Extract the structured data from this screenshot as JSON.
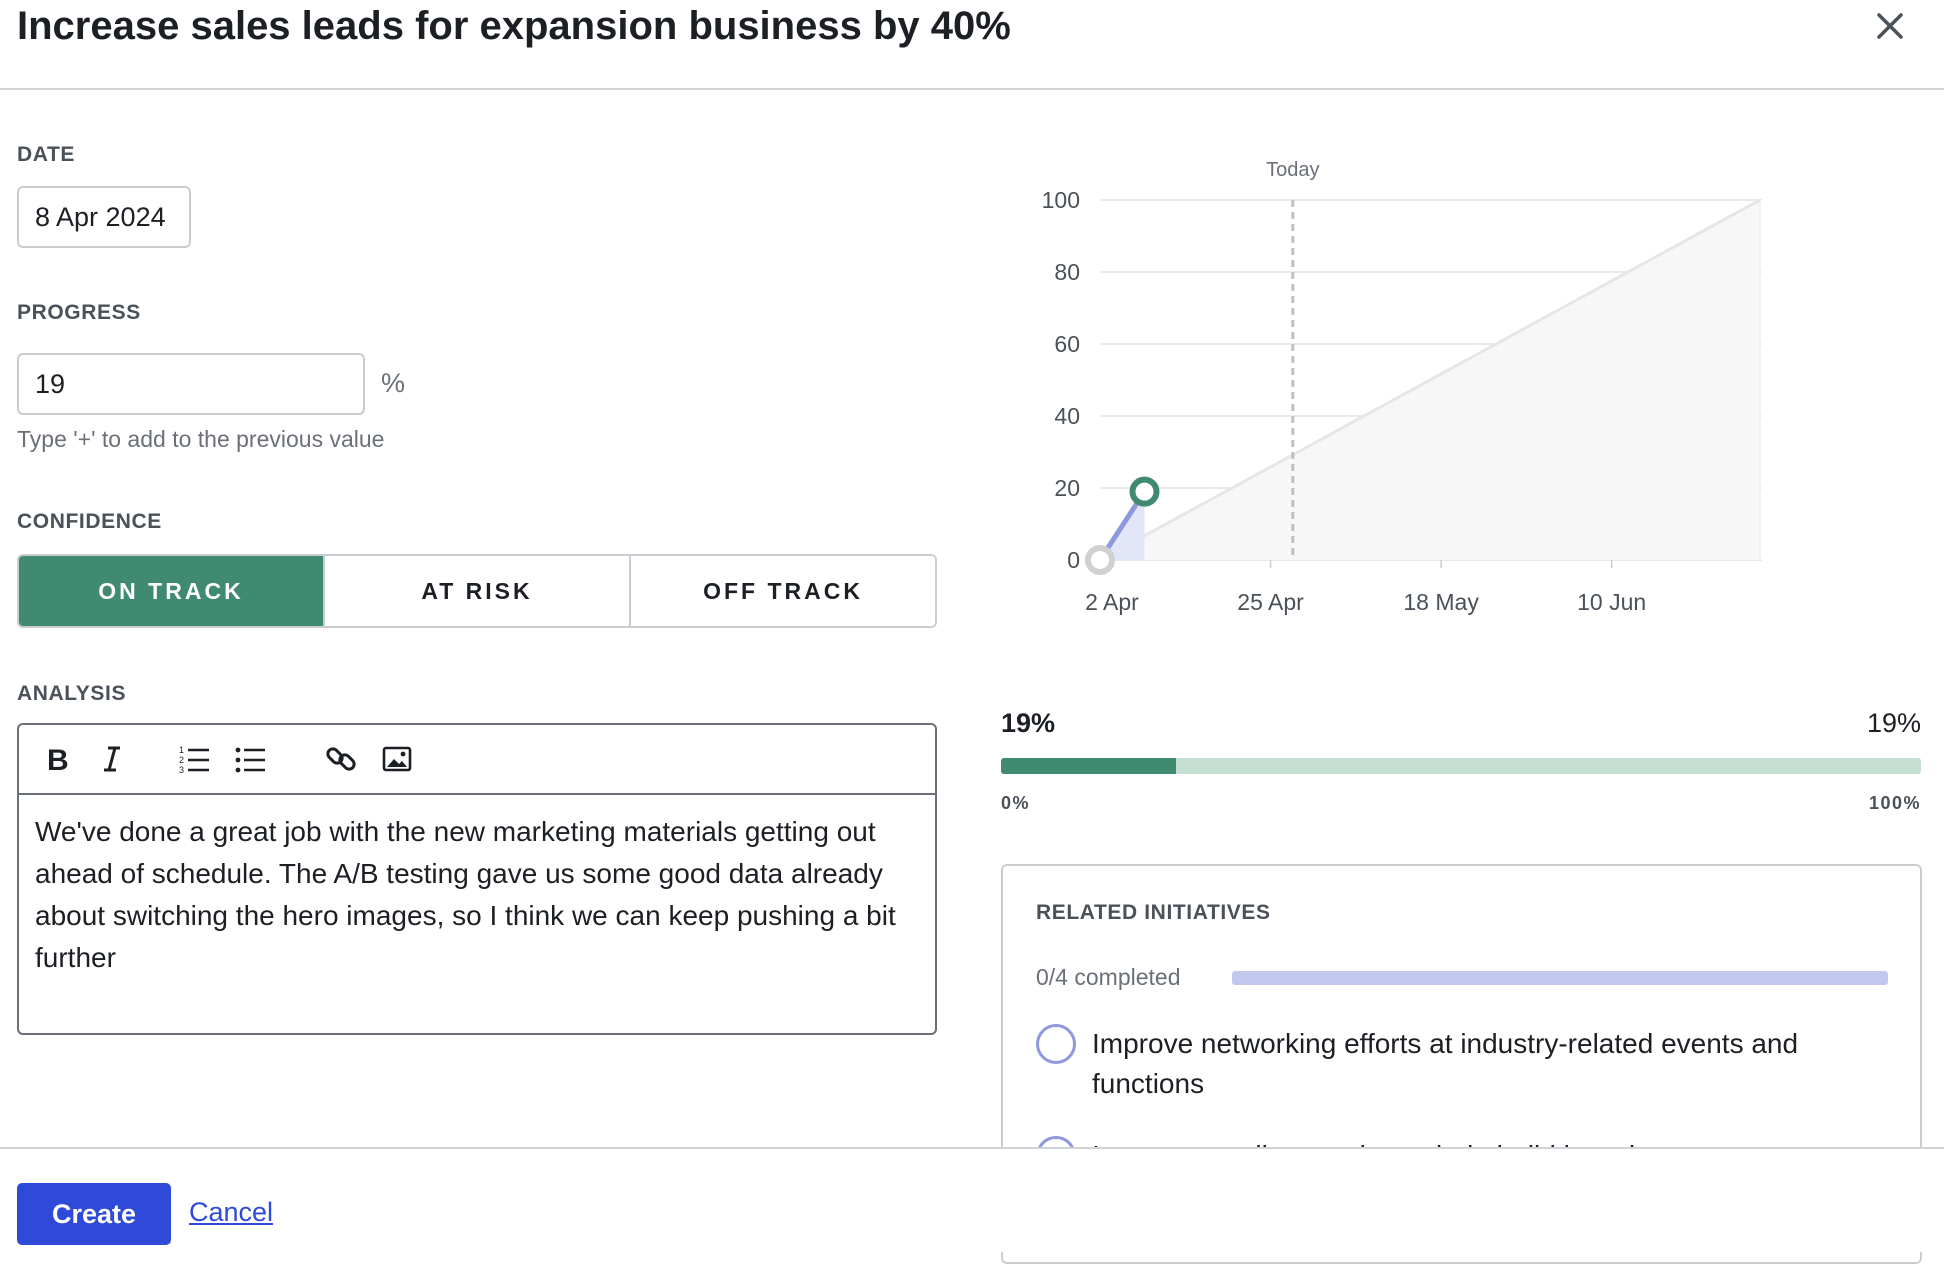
{
  "header": {
    "title": "Increase sales leads for expansion business by 40%"
  },
  "form": {
    "date_label": "DATE",
    "date_value": "8 Apr 2024",
    "progress_label": "PROGRESS",
    "progress_value": "19",
    "progress_suffix": "%",
    "progress_hint": "Type '+' to add to the previous value",
    "confidence_label": "CONFIDENCE",
    "confidence_options": [
      "ON TRACK",
      "AT RISK",
      "OFF TRACK"
    ],
    "confidence_selected": "ON TRACK",
    "analysis_label": "ANALYSIS",
    "analysis_text": "We've done a great job with the new marketing materials getting out ahead of schedule. The A/B testing gave us some good data already about switching the hero images, so I think we can keep pushing a bit further",
    "toolbar_icons": [
      "bold-icon",
      "italic-icon",
      "numbered-list-icon",
      "bulleted-list-icon",
      "link-icon",
      "image-icon"
    ]
  },
  "chart_data": {
    "type": "line",
    "title": "",
    "xlabel": "",
    "ylabel": "",
    "ylim": [
      0,
      100
    ],
    "yticks": [
      "0",
      "20",
      "40",
      "60",
      "80",
      "100"
    ],
    "xticks": [
      "2 Apr",
      "25 Apr",
      "18 May",
      "10 Jun"
    ],
    "today_label": "Today",
    "today_date": "2024-04-28",
    "series": [
      {
        "x": [
          "2024-04-02",
          "2024-04-08"
        ],
        "values": [
          0,
          19
        ]
      }
    ],
    "target_line": {
      "x": [
        "2024-04-02",
        "2024-06-30"
      ],
      "values": [
        0,
        100
      ]
    },
    "grid": true,
    "colors": {
      "progress": "#8e98dc",
      "current_point": "#3f8a70",
      "start_point": "#d0d0d0",
      "target": "#e6e6e6",
      "area": "#f7f7f7"
    }
  },
  "progress_bar": {
    "current_label": "19%",
    "right_label": "19%",
    "value": 0.19,
    "min_label": "0%",
    "max_label": "100%",
    "color": "#3f8a70",
    "track_color": "#c5dfd3"
  },
  "related": {
    "title": "RELATED INITIATIVES",
    "completed_text": "0/4 completed",
    "completed_fraction": 0,
    "items": [
      {
        "text": "Improve networking efforts at industry-related events and functions"
      },
      {
        "text": "Improve email campaign to help build brand awareness"
      }
    ]
  },
  "footer": {
    "create_label": "Create",
    "cancel_label": "Cancel"
  },
  "colors": {
    "accent": "#2f49d8",
    "on_track": "#3f8a70"
  }
}
